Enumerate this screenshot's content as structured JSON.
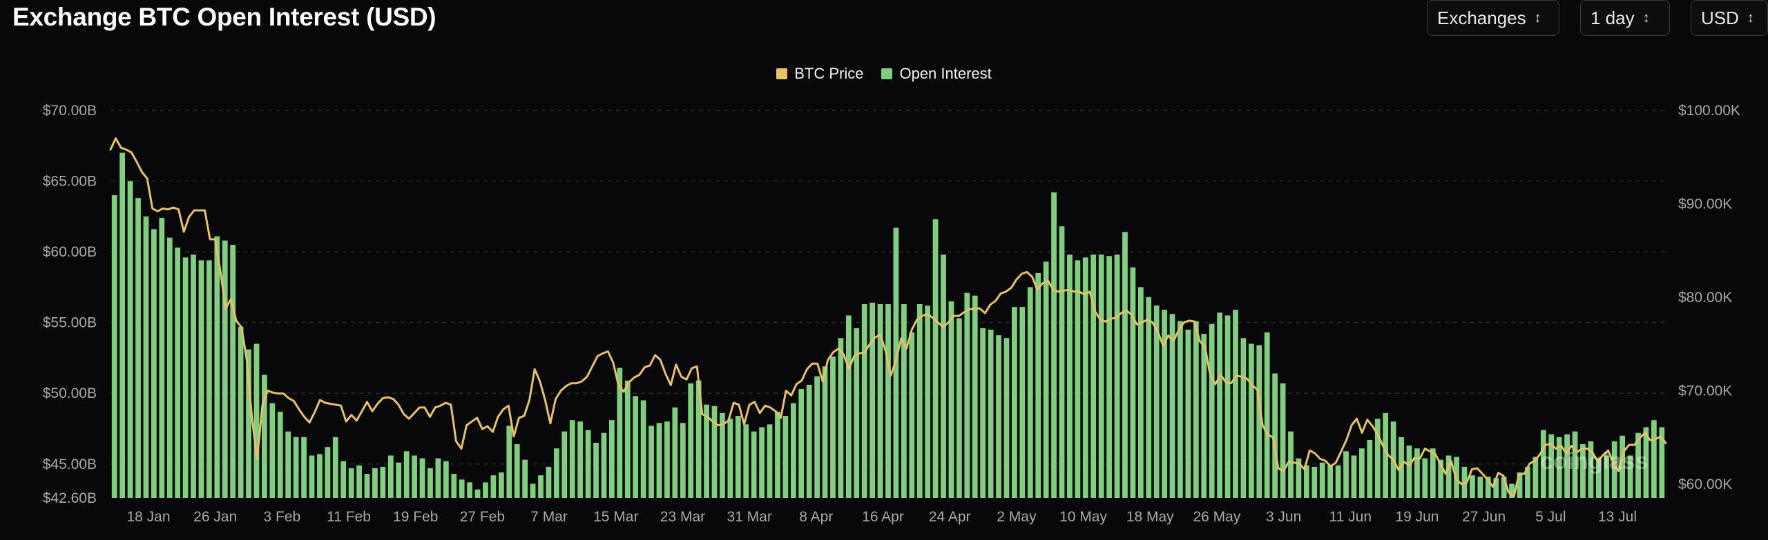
{
  "header": {
    "title": "Exchange BTC Open Interest (USD)"
  },
  "controls": {
    "exchanges_label": "Exchanges",
    "interval_label": "1 day",
    "currency_label": "USD"
  },
  "legend": {
    "btc_price_label": "BTC Price",
    "open_interest_label": "Open Interest"
  },
  "watermark": "coinglass",
  "colors": {
    "background": "#08080a",
    "bar": "#7fcf7e",
    "line": "#e6c266",
    "grid": "#2a2a2e"
  },
  "chart_data": {
    "type": "bar",
    "title": "Exchange BTC Open Interest (USD)",
    "grid": true,
    "legend_position": "top-center",
    "x_tick_labels": [
      "18 Jan",
      "26 Jan",
      "3 Feb",
      "11 Feb",
      "19 Feb",
      "27 Feb",
      "7 Mar",
      "15 Mar",
      "23 Mar",
      "31 Mar",
      "8 Apr",
      "16 Apr",
      "24 Apr",
      "2 May",
      "10 May",
      "18 May",
      "26 May",
      "3 Jun",
      "11 Jun",
      "19 Jun",
      "27 Jun",
      "5 Jul",
      "13 Jul"
    ],
    "y_left": {
      "ticks": [
        42.6,
        45,
        50,
        55,
        60,
        65,
        70
      ],
      "tick_labels": [
        "$42.60B",
        "$45.00B",
        "$50.00B",
        "$55.00B",
        "$60.00B",
        "$65.00B",
        "$70.00B"
      ],
      "min": 42.6,
      "max": 70
    },
    "y_right": {
      "ticks": [
        60,
        70,
        80,
        90,
        100
      ],
      "tick_labels": [
        "$60.00K",
        "$70.00K",
        "$80.00K",
        "$90.00K",
        "$100.00K"
      ],
      "min": 58.2,
      "max": 100
    },
    "series": [
      {
        "name": "Open Interest",
        "unit": "USD billions",
        "axis": "left",
        "values": [
          64,
          67,
          65,
          63.8,
          62.5,
          61.6,
          62.4,
          61,
          60.3,
          59.6,
          59.8,
          59.4,
          59.4,
          61.1,
          60.8,
          60.5,
          54.7,
          53.1,
          53.5,
          51.3,
          49.3,
          48.7,
          47.3,
          46.9,
          46.9,
          45.6,
          45.7,
          46.2,
          46.9,
          45.2,
          44.7,
          44.9,
          44.3,
          44.7,
          44.8,
          45.6,
          45.1,
          45.9,
          45.6,
          45.4,
          44.7,
          45.4,
          45.2,
          44.3,
          43.9,
          43.7,
          43.2,
          43.7,
          44.2,
          44.4,
          47.7,
          46.4,
          45.3,
          43.6,
          44.2,
          44.8,
          46.1,
          47.3,
          48.1,
          48,
          47.4,
          46.5,
          47.2,
          48.1,
          51.8,
          50.9,
          49.8,
          49.5,
          47.7,
          47.9,
          48,
          49,
          47.9,
          50.7,
          50.9,
          49.2,
          49.1,
          48.6,
          48.2,
          48.4,
          47.8,
          47.3,
          47.6,
          47.8,
          48.7,
          48.4,
          49.3,
          50.3,
          50.6,
          51.2,
          51.9,
          52.6,
          53.9,
          55.5,
          54.6,
          56.3,
          56.4,
          56.3,
          56.3,
          61.7,
          56.3,
          54.3,
          56.3,
          56.2,
          62.3,
          59.8,
          56.5,
          55.3,
          57.1,
          56.9,
          54.6,
          54.5,
          54.1,
          53.9,
          56.1,
          56.1,
          57.5,
          58.5,
          59.3,
          64.2,
          61.8,
          59.8,
          59.4,
          59.6,
          59.8,
          59.8,
          59.7,
          59.8,
          61.4,
          58.9,
          57.5,
          56.8,
          56.2,
          55.9,
          55.6,
          55.1,
          54.5,
          55.1,
          54.2,
          54.9,
          55.7,
          55.5,
          55.9,
          53.9,
          53.5,
          53.4,
          54.3,
          51.4,
          50.7,
          47.3,
          45.4,
          44.9,
          44.8,
          45.1,
          44.9,
          44.9,
          45.9,
          45.6,
          46.1,
          46.7,
          48.2,
          48.6,
          48,
          46.9,
          46.3,
          46.1,
          45.4,
          46.1,
          45.3,
          45.6,
          45.5,
          44.8,
          44.2,
          44.1,
          44.1,
          44,
          44.1,
          43.6,
          44.4,
          44.8,
          45.5,
          47.4,
          47.1,
          46.9,
          47.1,
          47.3,
          46.4,
          46.6,
          45.4,
          45.6,
          46.6,
          47,
          45.6,
          47.2,
          47.6,
          48.1,
          47.6
        ]
      },
      {
        "name": "BTC Price",
        "unit": "USD thousands",
        "axis": "right",
        "values": [
          95.8,
          97,
          96,
          95.8,
          95.5,
          94.5,
          93.4,
          92.7,
          89.5,
          89.2,
          89.5,
          89.4,
          89.6,
          89.4,
          87,
          88.6,
          89.3,
          89.3,
          89.3,
          86.2,
          86.2,
          82.7,
          78.8,
          79.8,
          77.5,
          76.8,
          73.4,
          67.2,
          62.7,
          68.4,
          70,
          69.8,
          69.7,
          69.7,
          69.2,
          68.9,
          68,
          67.2,
          66.6,
          67.7,
          69,
          68.7,
          68.6,
          68.5,
          68.4,
          66.7,
          67.4,
          66.8,
          67.8,
          68.8,
          67.8,
          68.6,
          69.2,
          69.3,
          69.1,
          68.5,
          67.5,
          67,
          67.6,
          68.2,
          68.2,
          67.2,
          68.2,
          68.4,
          68.7,
          68.5,
          64.6,
          63.8,
          66.3,
          66.7,
          67.1,
          65.9,
          66.2,
          65.6,
          67.2,
          68,
          68.4,
          65.1,
          67.1,
          67.3,
          69,
          72.3,
          71,
          69,
          66.5,
          69.1,
          70,
          70.5,
          70.8,
          70.8,
          71,
          71.5,
          72.6,
          73.7,
          74,
          74.2,
          73,
          70.6,
          69.9,
          70.9,
          71.4,
          71.7,
          72.5,
          72.7,
          73.8,
          73.3,
          71.8,
          70.6,
          72.8,
          71.5,
          71.2,
          72.4,
          72.6,
          67.5,
          67.2,
          66.7,
          66.3,
          66.4,
          66.8,
          68.7,
          68.5,
          66.4,
          68.5,
          68.8,
          67.6,
          68.4,
          68.2,
          67.8,
          67.1,
          70,
          69.5,
          70.7,
          71.1,
          72.3,
          72.9,
          72.9,
          71,
          73.3,
          74.1,
          74.5,
          73.9,
          72.3,
          73.7,
          74,
          74.1,
          75,
          75.7,
          76,
          74.3,
          71.6,
          73.3,
          75.6,
          74.5,
          76.5,
          77.6,
          78,
          78.2,
          77.8,
          77.3,
          76.8,
          77.3,
          78,
          78,
          78.4,
          78.7,
          78.8,
          78.8,
          78.3,
          79.2,
          79.6,
          80.4,
          80.6,
          81,
          81.9,
          82.5,
          82.7,
          82.2,
          80.8,
          81.5,
          81.8,
          80.8,
          80.6,
          80.7,
          80.8,
          80.6,
          80.6,
          80.3,
          80.6,
          78.5,
          77.6,
          77.4,
          77.7,
          77.8,
          78.3,
          78.6,
          78.1,
          77.1,
          77.3,
          77.6,
          77.3,
          76.3,
          74.8,
          75.9,
          75.3,
          76.5,
          77.3,
          77.5,
          77.4,
          75.3,
          74.7,
          71.7,
          70.7,
          71.7,
          70.9,
          70.8,
          71.6,
          71.5,
          71.3,
          70.6,
          70.1,
          66.3,
          65.3,
          65,
          61.7,
          61.4,
          62.4,
          62.3,
          62.2,
          61.6,
          63.6,
          63.3,
          62.7,
          62.5,
          61.9,
          62.3,
          63.5,
          64.7,
          66.3,
          67,
          65.5,
          66.9,
          66.2,
          65.3,
          64.1,
          63.1,
          62.6,
          61.5,
          62.4,
          62,
          62.8,
          62.7,
          63.8,
          63.5,
          63.2,
          62.1,
          61.1,
          62.5,
          60.5,
          60,
          60.2,
          61.6,
          61.7,
          61.1,
          60.5,
          59.7,
          61.2,
          60.9,
          59.1,
          58.7,
          61.1,
          61.1,
          62.2,
          62.5,
          63.2,
          64.2,
          64.3,
          63.8,
          64.1,
          63.3,
          64.1,
          63.4,
          63.8,
          63.8,
          63.4,
          62.4,
          63.1,
          63.6,
          62.2,
          61.4,
          63.5,
          64.2,
          64.2,
          64.9,
          65.5,
          64.7,
          64.8,
          65.1,
          64.4
        ]
      }
    ]
  }
}
